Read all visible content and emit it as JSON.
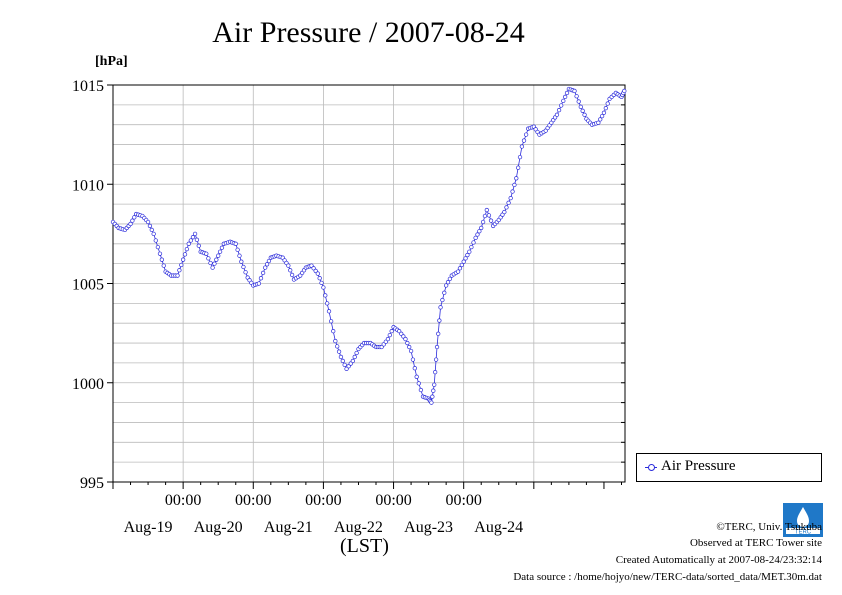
{
  "chart_data": {
    "type": "line",
    "title": "Air Pressure / 2007-08-24",
    "ylabel": "[hPa]",
    "xlabel": "(LST)",
    "ylim": [
      995,
      1015
    ],
    "y_ticks": [
      "995",
      "1000",
      "1005",
      "1010",
      "1015"
    ],
    "x_tick_times": [
      "00:00",
      "00:00",
      "00:00",
      "00:00",
      "00:00"
    ],
    "x_day_labels": [
      "Aug-19",
      "Aug-20",
      "Aug-21",
      "Aug-22",
      "Aug-23",
      "Aug-24"
    ],
    "grid": true,
    "legend_position": "lower-right-outside",
    "series": [
      {
        "name": "Air Pressure",
        "color": "#2b2bdb",
        "marker": "open-circle",
        "points": [
          [
            -1.0,
            1008.1
          ],
          [
            -0.92,
            1007.8
          ],
          [
            -0.83,
            1007.7
          ],
          [
            -0.75,
            1008.0
          ],
          [
            -0.67,
            1008.5
          ],
          [
            -0.58,
            1008.4
          ],
          [
            -0.5,
            1008.1
          ],
          [
            -0.42,
            1007.5
          ],
          [
            -0.33,
            1006.5
          ],
          [
            -0.25,
            1005.6
          ],
          [
            -0.17,
            1005.4
          ],
          [
            -0.08,
            1005.4
          ],
          [
            0.0,
            1006.2
          ],
          [
            0.08,
            1007.0
          ],
          [
            0.17,
            1007.5
          ],
          [
            0.25,
            1006.6
          ],
          [
            0.33,
            1006.5
          ],
          [
            0.42,
            1005.8
          ],
          [
            0.5,
            1006.4
          ],
          [
            0.58,
            1007.0
          ],
          [
            0.67,
            1007.1
          ],
          [
            0.75,
            1007.0
          ],
          [
            0.83,
            1006.1
          ],
          [
            0.92,
            1005.3
          ],
          [
            1.0,
            1004.9
          ],
          [
            1.08,
            1005.0
          ],
          [
            1.17,
            1005.8
          ],
          [
            1.25,
            1006.3
          ],
          [
            1.33,
            1006.4
          ],
          [
            1.42,
            1006.3
          ],
          [
            1.5,
            1005.9
          ],
          [
            1.58,
            1005.2
          ],
          [
            1.67,
            1005.4
          ],
          [
            1.75,
            1005.8
          ],
          [
            1.83,
            1005.9
          ],
          [
            1.92,
            1005.5
          ],
          [
            2.0,
            1004.8
          ],
          [
            2.08,
            1003.6
          ],
          [
            2.17,
            1002.1
          ],
          [
            2.25,
            1001.3
          ],
          [
            2.33,
            1000.7
          ],
          [
            2.42,
            1001.1
          ],
          [
            2.5,
            1001.7
          ],
          [
            2.58,
            1002.0
          ],
          [
            2.67,
            1002.0
          ],
          [
            2.75,
            1001.8
          ],
          [
            2.83,
            1001.8
          ],
          [
            2.92,
            1002.2
          ],
          [
            3.0,
            1002.8
          ],
          [
            3.08,
            1002.6
          ],
          [
            3.17,
            1002.2
          ],
          [
            3.25,
            1001.6
          ],
          [
            3.33,
            1000.3
          ],
          [
            3.42,
            999.3
          ],
          [
            3.5,
            999.2
          ],
          [
            3.54,
            999.0
          ],
          [
            3.58,
            999.9
          ],
          [
            3.62,
            1001.8
          ],
          [
            3.67,
            1003.8
          ],
          [
            3.75,
            1004.9
          ],
          [
            3.83,
            1005.4
          ],
          [
            3.92,
            1005.6
          ],
          [
            4.0,
            1006.1
          ],
          [
            4.08,
            1006.6
          ],
          [
            4.17,
            1007.3
          ],
          [
            4.25,
            1007.8
          ],
          [
            4.33,
            1008.7
          ],
          [
            4.42,
            1007.9
          ],
          [
            4.5,
            1008.2
          ],
          [
            4.58,
            1008.6
          ],
          [
            4.67,
            1009.3
          ],
          [
            4.75,
            1010.3
          ],
          [
            4.83,
            1011.9
          ],
          [
            4.92,
            1012.8
          ],
          [
            5.0,
            1012.9
          ],
          [
            5.08,
            1012.5
          ],
          [
            5.17,
            1012.7
          ],
          [
            5.25,
            1013.1
          ],
          [
            5.33,
            1013.5
          ],
          [
            5.42,
            1014.2
          ],
          [
            5.5,
            1014.8
          ],
          [
            5.58,
            1014.7
          ],
          [
            5.67,
            1013.9
          ],
          [
            5.75,
            1013.3
          ],
          [
            5.83,
            1013.0
          ],
          [
            5.92,
            1013.1
          ],
          [
            6.0,
            1013.6
          ],
          [
            6.08,
            1014.3
          ],
          [
            6.17,
            1014.6
          ],
          [
            6.25,
            1014.4
          ],
          [
            6.29,
            1014.7
          ]
        ]
      }
    ]
  },
  "footer": {
    "copyright": "©TERC, Univ. Tsukuba",
    "observed": "Observed at TERC Tower site",
    "created": "Created Automatically at 2007-08-24/23:32:14",
    "source": "Data source : /home/hojyo/new/TERC-data/sorted_data/MET.30m.dat"
  },
  "logo_text": "TERC"
}
